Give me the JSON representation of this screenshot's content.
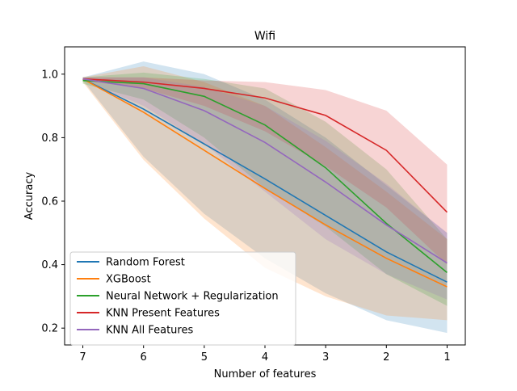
{
  "chart_data": {
    "type": "line",
    "title": "Wifi",
    "xlabel": "Number of features",
    "ylabel": "Accuracy",
    "x": [
      7,
      6,
      5,
      4,
      3,
      2,
      1
    ],
    "x_reversed": true,
    "xlim": [
      7.3,
      0.7
    ],
    "ylim": [
      0.147,
      1.086
    ],
    "yticks": [
      0.2,
      0.4,
      0.6,
      0.8,
      1.0
    ],
    "ytick_labels": [
      "0.2",
      "0.4",
      "0.6",
      "0.8",
      "1.0"
    ],
    "xticks": [
      7,
      6,
      5,
      4,
      3,
      2,
      1
    ],
    "xtick_labels": [
      "7",
      "6",
      "5",
      "4",
      "3",
      "2",
      "1"
    ],
    "grid": false,
    "legend_position": "lower-left",
    "series": [
      {
        "name": "Random Forest",
        "color": "#1f77b4",
        "values": [
          0.985,
          0.89,
          0.78,
          0.67,
          0.555,
          0.44,
          0.345
        ],
        "band_upper": [
          0.99,
          1.04,
          1.0,
          0.92,
          0.8,
          0.65,
          0.5
        ],
        "band_lower": [
          0.98,
          0.74,
          0.56,
          0.42,
          0.31,
          0.225,
          0.185
        ]
      },
      {
        "name": "XGBoost",
        "color": "#ff7f0e",
        "values": [
          0.985,
          0.88,
          0.76,
          0.64,
          0.525,
          0.42,
          0.33
        ],
        "band_upper": [
          0.99,
          1.025,
          0.975,
          0.9,
          0.77,
          0.63,
          0.48
        ],
        "band_lower": [
          0.975,
          0.73,
          0.545,
          0.39,
          0.3,
          0.24,
          0.225
        ]
      },
      {
        "name": "Neural Network + Regularization",
        "color": "#2ca02c",
        "values": [
          0.98,
          0.97,
          0.93,
          0.84,
          0.705,
          0.53,
          0.375
        ],
        "band_upper": [
          0.99,
          1.005,
          0.985,
          0.955,
          0.85,
          0.7,
          0.48
        ],
        "band_lower": [
          0.97,
          0.92,
          0.8,
          0.64,
          0.52,
          0.37,
          0.27
        ]
      },
      {
        "name": "KNN Present Features",
        "color": "#d62728",
        "values": [
          0.985,
          0.975,
          0.955,
          0.925,
          0.87,
          0.76,
          0.565
        ],
        "band_upper": [
          0.99,
          0.99,
          0.98,
          0.975,
          0.95,
          0.885,
          0.715
        ],
        "band_lower": [
          0.98,
          0.955,
          0.9,
          0.82,
          0.71,
          0.58,
          0.4
        ]
      },
      {
        "name": "KNN All Features",
        "color": "#9467bd",
        "values": [
          0.985,
          0.955,
          0.885,
          0.785,
          0.66,
          0.525,
          0.405
        ],
        "band_upper": [
          0.99,
          0.99,
          0.96,
          0.9,
          0.79,
          0.655,
          0.5
        ],
        "band_lower": [
          0.98,
          0.9,
          0.78,
          0.63,
          0.48,
          0.37,
          0.29
        ]
      }
    ]
  }
}
